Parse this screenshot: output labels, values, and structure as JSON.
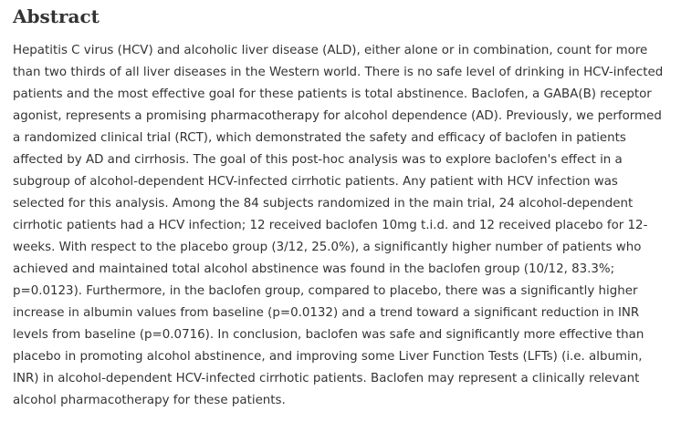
{
  "section": {
    "heading": "Abstract",
    "body": "Hepatitis C virus (HCV) and alcoholic liver disease (ALD), either alone or in combination, count for more than two thirds of all liver diseases in the Western world. There is no safe level of drinking in HCV-infected patients and the most effective goal for these patients is total abstinence. Baclofen, a GABA(B) receptor agonist, represents a promising pharmacotherapy for alcohol dependence (AD). Previously, we performed a randomized clinical trial (RCT), which demonstrated the safety and efficacy of baclofen in patients affected by AD and cirrhosis. The goal of this post-hoc analysis was to explore baclofen's effect in a subgroup of alcohol-dependent HCV-infected cirrhotic patients. Any patient with HCV infection was selected for this analysis. Among the 84 subjects randomized in the main trial, 24 alcohol-dependent cirrhotic patients had a HCV infection; 12 received baclofen 10mg t.i.d. and 12 received placebo for 12-weeks. With respect to the placebo group (3/12, 25.0%), a significantly higher number of patients who achieved and maintained total alcohol abstinence was found in the baclofen group (10/12, 83.3%; p=0.0123). Furthermore, in the baclofen group, compared to placebo, there was a significantly higher increase in albumin values from baseline (p=0.0132) and a trend toward a significant reduction in INR levels from baseline (p=0.0716). In conclusion, baclofen was safe and significantly more effective than placebo in promoting alcohol abstinence, and improving some Liver Function Tests (LFTs) (i.e. albumin, INR) in alcohol-dependent HCV-infected cirrhotic patients. Baclofen may represent a clinically relevant alcohol pharmacotherapy for these patients."
  }
}
